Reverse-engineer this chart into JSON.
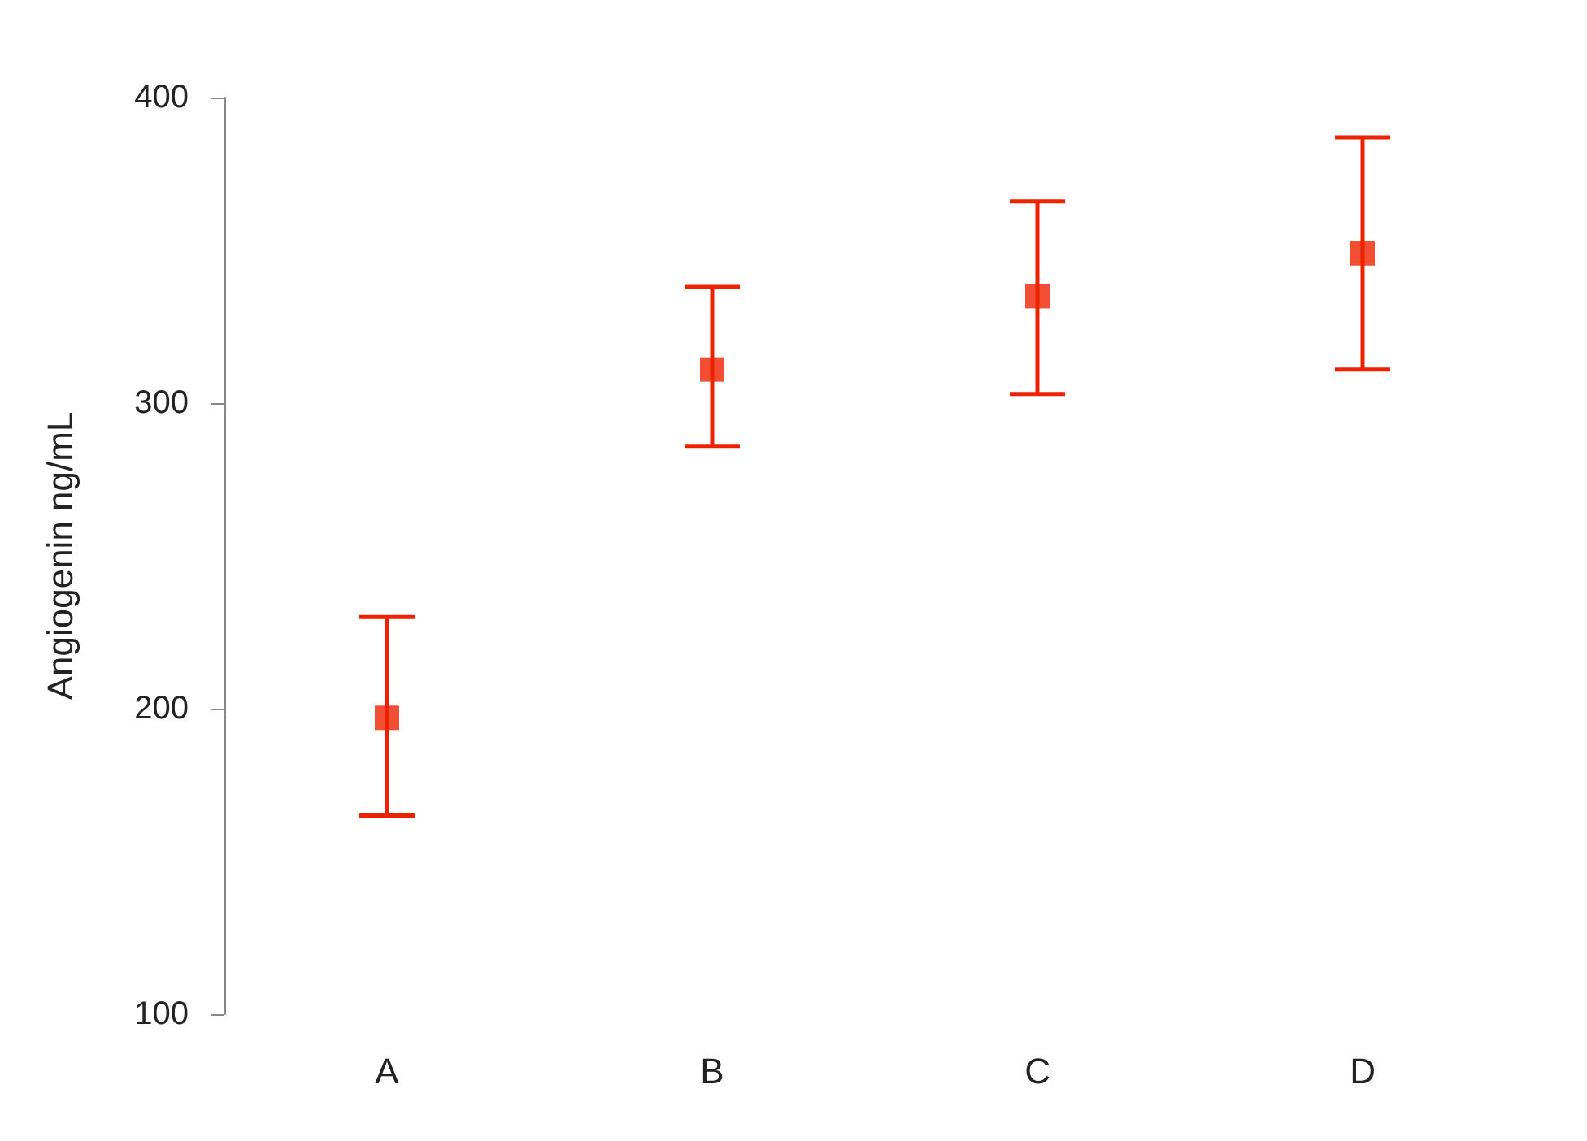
{
  "chart_data": {
    "type": "scatter",
    "ylabel": "Angiogenin ng/mL",
    "categories": [
      "A",
      "B",
      "C",
      "D"
    ],
    "series": [
      {
        "color": "#ee2200",
        "values": [
          197,
          311,
          335,
          349
        ],
        "errors": [
          [
            165,
            230
          ],
          [
            286,
            338
          ],
          [
            303,
            366
          ],
          [
            311,
            387
          ]
        ]
      }
    ],
    "ylim": [
      100,
      400
    ],
    "yticks": [
      100,
      200,
      300,
      400
    ],
    "marker": "square"
  }
}
